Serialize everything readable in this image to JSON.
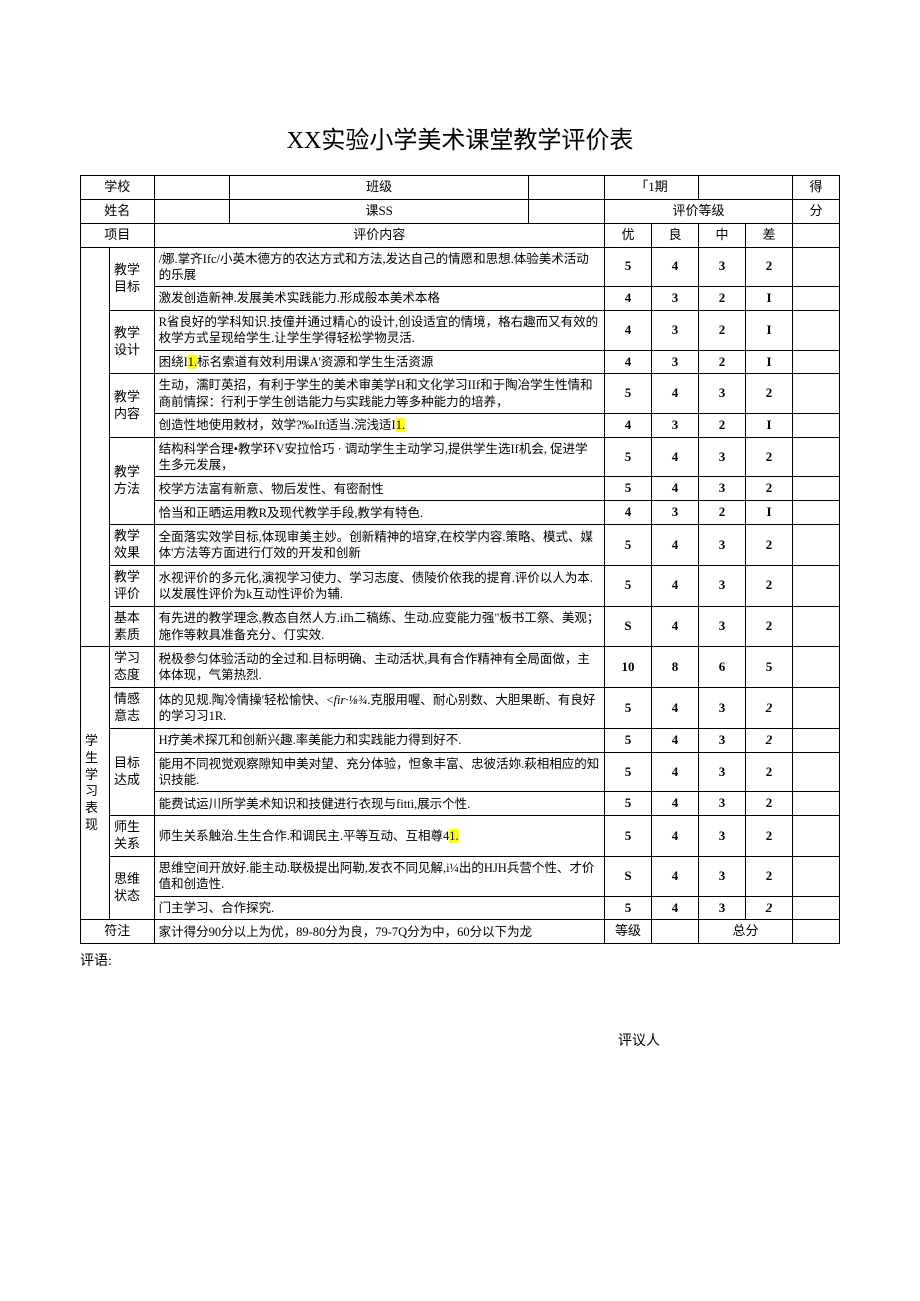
{
  "title": "XX实验小学美术课堂教学评价表",
  "header": {
    "school_label": "学校",
    "class_label": "班级",
    "date_label": "「1期",
    "score_label": "得",
    "name_label": "姓名",
    "course_label": "课SS",
    "rating_label": "评价等级",
    "score_label2": "分",
    "project_label": "项目",
    "content_label": "评价内容",
    "excellent": "优",
    "good": "良",
    "mid": "中",
    "bad": "差"
  },
  "section_labels": {
    "teacher": "",
    "student": "学生学习表现"
  },
  "rows": [
    {
      "cat": "教学目标",
      "catRowspan": 2,
      "content": "/娜.掌齐Ifc/小英木德方的农达方式和方法,发达自己的情愿和思想.体验美术活动的乐展",
      "scores": [
        "5",
        "4",
        "3",
        "2"
      ],
      "bold": true
    },
    {
      "content": "激发创造新神.发展美术实践能力.形成般本美术本格",
      "scores": [
        "4",
        "3",
        "2",
        "I"
      ],
      "bold": true
    },
    {
      "cat": "教学设计",
      "catRowspan": 2,
      "content": "R省良好的学科知识.技僮并通过精心的设计,创设适宜的情境，格右趣而又有效的枚学方式呈现给学生.让学生学得轻松学物灵活.",
      "scores": [
        "4",
        "3",
        "2",
        "I"
      ],
      "bold": true
    },
    {
      "content_parts": [
        {
          "t": "困绕I"
        },
        {
          "t": "1.",
          "hl": true
        },
        {
          "t": "标名索道有效利用课A'资源和学生生活资源"
        }
      ],
      "scores": [
        "4",
        "3",
        "2",
        "I"
      ],
      "bold": true
    },
    {
      "cat": "教学内容",
      "catRowspan": 2,
      "content": "生动，濡盯英招，有利于学生的美术审美学H和文化学习IIf和于陶冶学生性情和商前情探：行利于学生创诰能力与实践能力等多种能力的培养，",
      "scores": [
        "5",
        "4",
        "3",
        "2"
      ],
      "bold": true
    },
    {
      "content_parts": [
        {
          "t": "创造性地使用敕材，效学?‰Ift适当.浣浅适I"
        },
        {
          "t": "1.",
          "hl": true
        }
      ],
      "scores": [
        "4",
        "3",
        "2",
        "I"
      ],
      "bold": true
    },
    {
      "cat": "教学方法",
      "catRowspan": 3,
      "content": "结构科学合理•教学环V安拉恰巧 · 调动学生主动学习,提供学生选If机会, 促进学生多元发展，",
      "scores": [
        "5",
        "4",
        "3",
        "2"
      ],
      "bold": true
    },
    {
      "content": "校学方法富有新意、物后发性、有密耐性",
      "scores": [
        "5",
        "4",
        "3",
        "2"
      ],
      "bold": true
    },
    {
      "content": "恰当和正晒运用教R及现代教学手段,教学有特色.",
      "scores": [
        "4",
        "3",
        "2",
        "I"
      ],
      "bold": true
    },
    {
      "cat": "教学效果",
      "catRowspan": 1,
      "content": "全面落实效学目标,体现审美主妙。创新精神的培穿,在校学内容.策略、模式、媒体'方法等方面进行仃效的开发和创新",
      "scores": [
        "5",
        "4",
        "3",
        "2"
      ],
      "bold": true
    },
    {
      "cat": "教学评价",
      "catRowspan": 1,
      "content": "水视评价的多元化,演视学习使力、学习志度、债陵价依我的提育.评价以人为本.以发展性评价为k互动性评价为辅.",
      "scores": [
        "5",
        "4",
        "3",
        "2"
      ],
      "bold": true
    },
    {
      "cat": "基本素质",
      "catRowspan": 1,
      "content": "有先进的教学理念,教态自然人方.ifh二稿练、生动.应变能力强\"板书工祭、美观；施作等敕具准备充分、仃实效.",
      "scores": [
        "S",
        "4",
        "3",
        "2"
      ],
      "bold": true
    }
  ],
  "student_rows": [
    {
      "cat": "学习态度",
      "catRowspan": 1,
      "content": "税极参匀体验活动的全过和.目标明确、主动活状,具有合作精神有全局面做，主体体现，气第热烈.",
      "scores": [
        "10",
        "8",
        "6",
        "5"
      ],
      "bold": true
    },
    {
      "cat": "情感意志",
      "catRowspan": 1,
      "content_parts": [
        {
          "t": "体的见规.陶冷情操'轻松愉快、<"
        },
        {
          "t": "fir·⅛¾",
          "i": true
        },
        {
          "t": ".克服用喔、耐心别数、大胆果断、有良好的学习习1R."
        }
      ],
      "scores": [
        "5",
        "4",
        "3",
        "2"
      ],
      "bold": true,
      "italic_last": true
    },
    {
      "cat": "目标达成",
      "catRowspan": 3,
      "content": "H疗美术探兀和创新兴趣.率美能力和实践能力得到好不.",
      "scores": [
        "5",
        "4",
        "3",
        "2"
      ],
      "bold": true,
      "italic_last": true
    },
    {
      "content": "能用不同视觉观察隙知申美对望、充分体验，怛象丰富、忠彼活妳.萩相相应的知识技能.",
      "scores": [
        "5",
        "4",
        "3",
        "2"
      ],
      "bold": true
    },
    {
      "content": "能费试运川所学美术知识和技健进行衣现与fitti,展示个性.",
      "scores": [
        "5",
        "4",
        "3",
        "2"
      ],
      "bold": true
    },
    {
      "cat": "师生关系",
      "catRowspan": 1,
      "content_parts": [
        {
          "t": "师生关系触治.生生合作.和调民主.平等互动、互相尊4"
        },
        {
          "t": "1.",
          "hl": true
        }
      ],
      "scores": [
        "5",
        "4",
        "3",
        "2"
      ],
      "bold": true
    },
    {
      "cat": "思维状态",
      "catRowspan": 2,
      "content": "思维空间开放好.能主动.联极提出阿勒,发衣不同见解,i¼出的HJH兵营个性、才价值和创造性.",
      "scores": [
        "S",
        "4",
        "3",
        "2"
      ],
      "bold": true
    },
    {
      "content": "门主学习、合作探究.",
      "scores": [
        "5",
        "4",
        "3",
        "2"
      ],
      "bold": true,
      "italic_last": true
    }
  ],
  "footer_row": {
    "label": "符注",
    "content": "家计得分90分以上为优，89-80分为良，79-7Q分为中，60分以下为龙",
    "grade_label": "等级",
    "total_label": "总分"
  },
  "comment_label": "评语:",
  "reviewer_label": "评议人"
}
